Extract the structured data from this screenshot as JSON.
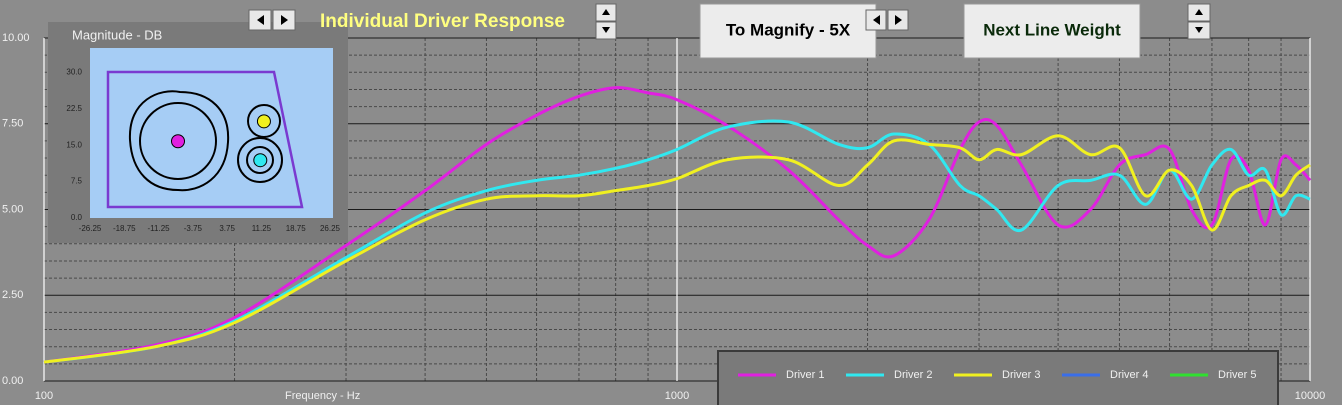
{
  "chart_data": [
    {
      "type": "line",
      "title": "Individual Driver Response",
      "y_label": "Magnitude  -  DB",
      "x_label": "Frequency  -  Hz",
      "log_x": true,
      "grid": true,
      "legend": "bottom-right",
      "xlim": [
        100,
        10000
      ],
      "xticks": [
        100,
        1000,
        10000
      ],
      "minor_xticks": [
        200,
        300,
        400,
        500,
        600,
        700,
        800,
        900,
        2000,
        3000,
        4000,
        5000,
        6000,
        7000,
        8000,
        9000
      ],
      "ylim": [
        0,
        10
      ],
      "yticks": [
        {
          "value": 0,
          "label": "0.00"
        },
        {
          "value": 2.5,
          "label": "2.50"
        },
        {
          "value": 5,
          "label": "5.00"
        },
        {
          "value": 7.5,
          "label": "7.50"
        },
        {
          "value": 10,
          "label": "10.00"
        }
      ],
      "minor_yticks": [
        0.5,
        1,
        1.5,
        2,
        3,
        3.5,
        4,
        4.5,
        5.5,
        6,
        6.5,
        7,
        8,
        8.5,
        9,
        9.5
      ],
      "x": [
        100,
        150,
        200,
        300,
        400,
        500,
        600,
        700,
        800,
        900,
        1000,
        1200,
        1500,
        1800,
        2000,
        2200,
        2500,
        2800,
        3000,
        3200,
        3500,
        4000,
        4500,
        5000,
        5500,
        6000,
        6500,
        7000,
        7500,
        8000,
        8500,
        9000,
        9500,
        10000
      ],
      "series": [
        {
          "name": "Driver 1",
          "color": "#e020e0",
          "values": [
            0.55,
            1.05,
            1.85,
            3.95,
            5.55,
            6.9,
            7.75,
            8.3,
            8.55,
            8.4,
            8.2,
            7.45,
            6.15,
            4.7,
            3.95,
            3.65,
            4.7,
            6.75,
            7.55,
            7.45,
            6.3,
            4.55,
            5.0,
            6.3,
            6.6,
            6.75,
            5.0,
            4.55,
            6.45,
            6.15,
            4.55,
            6.45,
            6.3,
            5.85
          ]
        },
        {
          "name": "Driver 2",
          "color": "#30e8f0",
          "values": [
            0.55,
            1.0,
            1.75,
            3.6,
            4.9,
            5.55,
            5.85,
            6.0,
            6.2,
            6.45,
            6.75,
            7.4,
            7.55,
            6.9,
            6.8,
            7.2,
            6.9,
            5.7,
            5.4,
            5.0,
            4.4,
            5.7,
            5.85,
            6.0,
            5.15,
            6.15,
            5.3,
            6.3,
            6.75,
            6.0,
            6.15,
            4.85,
            5.4,
            5.3
          ]
        },
        {
          "name": "Driver 3",
          "color": "#f0f020",
          "values": [
            0.55,
            1.0,
            1.7,
            3.5,
            4.7,
            5.3,
            5.4,
            5.4,
            5.55,
            5.7,
            5.9,
            6.45,
            6.45,
            5.7,
            6.3,
            7.0,
            6.9,
            6.8,
            6.45,
            6.75,
            6.6,
            7.15,
            6.6,
            6.8,
            5.4,
            6.15,
            5.7,
            4.4,
            5.4,
            5.7,
            5.85,
            5.4,
            6.0,
            6.3
          ]
        },
        {
          "name": "Driver 4",
          "color": "#3a6ee8",
          "values": [
            null,
            null,
            null,
            null,
            null,
            null,
            null,
            null,
            null,
            null,
            null,
            null,
            null,
            null,
            null,
            null,
            null,
            null,
            null,
            null,
            null,
            null,
            null,
            null,
            null,
            null,
            null,
            null,
            null,
            null,
            null,
            null,
            null,
            null
          ]
        },
        {
          "name": "Driver 5",
          "color": "#30e030",
          "values": [
            null,
            null,
            null,
            null,
            null,
            null,
            null,
            null,
            null,
            null,
            null,
            null,
            null,
            null,
            null,
            null,
            null,
            null,
            null,
            null,
            null,
            null,
            null,
            null,
            null,
            null,
            null,
            null,
            null,
            null,
            null,
            null,
            null,
            null
          ]
        }
      ]
    },
    {
      "type": "scatter",
      "xlim": [
        -26.25,
        26.25
      ],
      "xticks": [
        -26.25,
        -18.75,
        -11.25,
        -3.75,
        3.75,
        11.25,
        18.75,
        26.25
      ],
      "ylim": [
        0,
        35
      ],
      "yticks": [
        {
          "value": 0,
          "label": "0.0"
        },
        7.5,
        {
          "value": 15,
          "label": "15.0"
        },
        22.5,
        {
          "value": 30,
          "label": "30.0"
        }
      ],
      "x": [
        -7.0,
        11.8,
        11.0
      ],
      "y": [
        15.8,
        19.9,
        11.9
      ],
      "colors": [
        "#e020e0",
        "#f0f020",
        "#30e8f0"
      ]
    }
  ],
  "ui": {
    "buttons": [
      "To Magnify - 5X",
      "Next Line Weight"
    ]
  }
}
